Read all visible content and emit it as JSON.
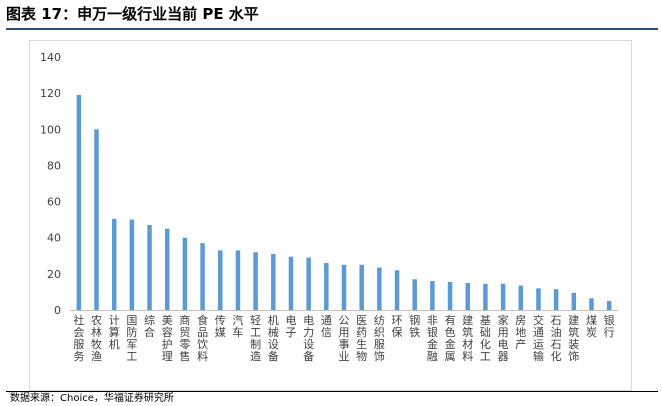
{
  "header": {
    "title": "图表 17：申万一级行业当前 PE 水平"
  },
  "footer": {
    "source": "数据来源：Choice，华福证券研究所"
  },
  "chart_data": {
    "type": "bar",
    "title": "",
    "xlabel": "",
    "ylabel": "",
    "ylim": [
      0,
      140
    ],
    "yticks": [
      0,
      20,
      40,
      60,
      80,
      100,
      120,
      140
    ],
    "grid": false,
    "legend": "none",
    "bar_color": "#5b9bd5",
    "categories": [
      "社会服务",
      "农林牧渔",
      "计算机",
      "国防军工",
      "综合",
      "美容护理",
      "商贸零售",
      "食品饮料",
      "传媒",
      "汽车",
      "轻工制造",
      "机械设备",
      "电子",
      "电力设备",
      "通信",
      "公用事业",
      "医药生物",
      "纺织服饰",
      "环保",
      "钢铁",
      "非银金融",
      "有色金属",
      "建筑材料",
      "基础化工",
      "家用电器",
      "房地产",
      "交通运输",
      "石油石化",
      "建筑装饰",
      "煤炭",
      "银行"
    ],
    "values": [
      119,
      100,
      50.5,
      50,
      47,
      45,
      40,
      37,
      33,
      33,
      32,
      31,
      29.5,
      29,
      26,
      25,
      25,
      23.5,
      22,
      17,
      16,
      15.5,
      15,
      14.5,
      14.5,
      13.5,
      12,
      11.5,
      9.5,
      6.5,
      5
    ]
  }
}
